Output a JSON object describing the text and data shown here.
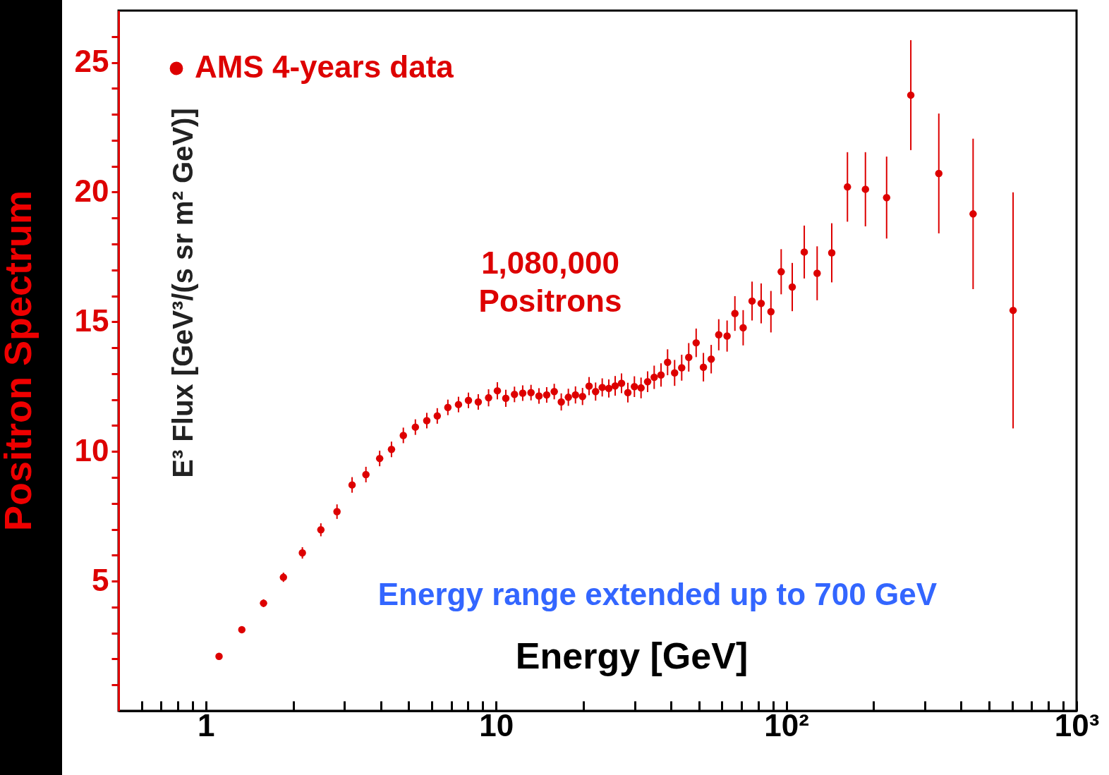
{
  "chart_data": {
    "type": "scatter",
    "title": "Positron Spectrum",
    "xlabel": "Energy [GeV]",
    "ylabel": "E³ Flux [GeV³/(s sr m² GeV)]",
    "annotations": [
      "1,080,000\nPositrons",
      "Energy range extended up to 700 GeV"
    ],
    "log": "x",
    "marker": "circle",
    "legend": "top left",
    "xlim": [
      0.5,
      1000
    ],
    "xticks": [
      {
        "value": 0.6,
        "label": null
      },
      {
        "value": 0.7,
        "label": null
      },
      {
        "value": 0.8,
        "label": null
      },
      {
        "value": 0.9,
        "label": null
      },
      1,
      {
        "value": 2,
        "label": null
      },
      {
        "value": 3,
        "label": null
      },
      {
        "value": 4,
        "label": null
      },
      {
        "value": 5,
        "label": null
      },
      {
        "value": 6,
        "label": null
      },
      {
        "value": 7,
        "label": null
      },
      {
        "value": 8,
        "label": null
      },
      {
        "value": 9,
        "label": null
      },
      10,
      {
        "value": 20,
        "label": null
      },
      {
        "value": 30,
        "label": null
      },
      {
        "value": 40,
        "label": null
      },
      {
        "value": 50,
        "label": null
      },
      {
        "value": 60,
        "label": null
      },
      {
        "value": 70,
        "label": null
      },
      {
        "value": 80,
        "label": null
      },
      {
        "value": 90,
        "label": null
      },
      {
        "value": 100,
        "label": "10²"
      },
      {
        "value": 200,
        "label": null
      },
      {
        "value": 300,
        "label": null
      },
      {
        "value": 400,
        "label": null
      },
      {
        "value": 500,
        "label": null
      },
      {
        "value": 600,
        "label": null
      },
      {
        "value": 700,
        "label": null
      },
      {
        "value": 800,
        "label": null
      },
      {
        "value": 900,
        "label": null
      },
      {
        "value": 1000,
        "label": "10³"
      }
    ],
    "ylim": [
      0,
      27
    ],
    "yticks": [
      {
        "value": 1,
        "label": null
      },
      {
        "value": 2,
        "label": null
      },
      {
        "value": 3,
        "label": null
      },
      {
        "value": 4,
        "label": null
      },
      5,
      {
        "value": 6,
        "label": null
      },
      {
        "value": 7,
        "label": null
      },
      {
        "value": 8,
        "label": null
      },
      {
        "value": 9,
        "label": null
      },
      10,
      {
        "value": 11,
        "label": null
      },
      {
        "value": 12,
        "label": null
      },
      {
        "value": 13,
        "label": null
      },
      {
        "value": 14,
        "label": null
      },
      15,
      {
        "value": 16,
        "label": null
      },
      {
        "value": 17,
        "label": null
      },
      {
        "value": 18,
        "label": null
      },
      {
        "value": 19,
        "label": null
      },
      20,
      {
        "value": 21,
        "label": null
      },
      {
        "value": 22,
        "label": null
      },
      {
        "value": 23,
        "label": null
      },
      {
        "value": 24,
        "label": null
      },
      25,
      {
        "value": 26,
        "label": null
      }
    ],
    "x": [
      1.11,
      1.33,
      1.58,
      1.85,
      2.15,
      2.49,
      2.83,
      3.19,
      3.56,
      3.97,
      4.36,
      4.79,
      5.27,
      5.77,
      6.27,
      6.82,
      7.42,
      8.03,
      8.68,
      9.42,
      10.1,
      10.8,
      11.57,
      12.35,
      13.19,
      14.05,
      14.94,
      15.86,
      16.77,
      17.74,
      18.77,
      19.85,
      20.91,
      22.02,
      23.21,
      24.45,
      25.72,
      27.05,
      28.44,
      29.96,
      31.58,
      33.27,
      35.05,
      37.0,
      38.98,
      41.22,
      43.6,
      46.1,
      48.9,
      51.8,
      55.1,
      58.5,
      62.5,
      66.5,
      71.0,
      76.2,
      81.9,
      88.5,
      96.0,
      104.8,
      115.3,
      127.7,
      143.4,
      162.4,
      187.3,
      221.6,
      268.5,
      335.3,
      440.1,
      604.5
    ],
    "series": [
      {
        "name": "AMS 4-years data",
        "color": "#dd0000",
        "values": [
          2.1,
          3.13,
          4.15,
          5.15,
          6.09,
          6.98,
          7.68,
          8.71,
          9.11,
          9.73,
          10.08,
          10.62,
          10.94,
          11.19,
          11.37,
          11.7,
          11.81,
          11.97,
          11.91,
          12.07,
          12.34,
          12.05,
          12.2,
          12.25,
          12.27,
          12.14,
          12.18,
          12.31,
          11.91,
          12.09,
          12.18,
          12.12,
          12.52,
          12.31,
          12.47,
          12.43,
          12.53,
          12.63,
          12.27,
          12.5,
          12.45,
          12.69,
          12.86,
          12.95,
          13.44,
          13.03,
          13.23,
          13.63,
          14.19,
          13.25,
          13.56,
          14.5,
          14.45,
          15.32,
          14.77,
          15.8,
          15.71,
          15.39,
          16.93,
          16.34,
          17.69,
          16.87,
          17.66,
          20.2,
          20.11,
          19.79,
          23.74,
          20.72,
          19.16,
          15.44
        ],
        "errors": [
          null,
          0.12,
          0.15,
          0.18,
          0.22,
          0.25,
          0.28,
          0.3,
          0.3,
          0.3,
          0.3,
          0.3,
          0.3,
          0.3,
          0.3,
          0.3,
          0.3,
          0.3,
          0.3,
          0.33,
          0.33,
          0.33,
          0.3,
          0.3,
          0.3,
          0.3,
          0.3,
          0.3,
          0.33,
          0.33,
          0.33,
          0.33,
          0.35,
          0.35,
          0.35,
          0.35,
          0.38,
          0.38,
          0.38,
          0.4,
          0.4,
          0.4,
          0.45,
          0.45,
          0.5,
          0.5,
          0.5,
          0.55,
          0.55,
          0.55,
          0.55,
          0.6,
          0.6,
          0.67,
          0.68,
          0.75,
          0.77,
          0.8,
          0.87,
          0.93,
          1.02,
          1.04,
          1.14,
          1.34,
          1.43,
          1.58,
          2.12,
          2.31,
          2.9,
          4.55
        ]
      }
    ]
  }
}
